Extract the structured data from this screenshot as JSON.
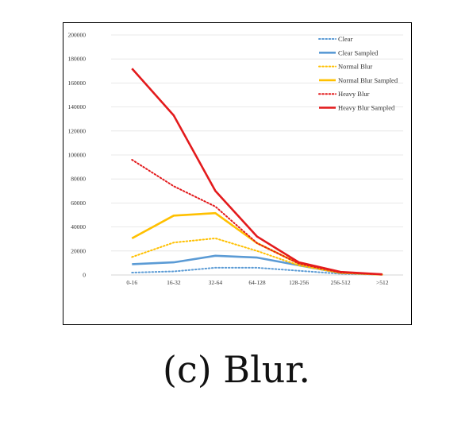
{
  "caption": "(c) Blur.",
  "chart_data": {
    "type": "line",
    "categories": [
      "0-16",
      "16-32",
      "32-64",
      "64-128",
      "128-256",
      "256-512",
      ">512"
    ],
    "ylim": [
      0,
      200000
    ],
    "yticks": [
      0,
      20000,
      40000,
      60000,
      80000,
      100000,
      120000,
      140000,
      160000,
      180000,
      200000
    ],
    "grid": true,
    "legend_position": "top-right",
    "series": [
      {
        "name": "Clear",
        "values": [
          2000,
          3000,
          6000,
          6000,
          3500,
          1000,
          300
        ],
        "color": "#5b9bd5",
        "dashed": true
      },
      {
        "name": "Clear Sampled",
        "values": [
          9000,
          10500,
          16000,
          14500,
          8000,
          1800,
          400
        ],
        "color": "#5b9bd5",
        "dashed": false
      },
      {
        "name": "Normal Blur",
        "values": [
          15000,
          27000,
          30500,
          20000,
          8000,
          1500,
          300
        ],
        "color": "#ffc000",
        "dashed": true
      },
      {
        "name": "Normal Blur Sampled",
        "values": [
          30500,
          49500,
          51500,
          26500,
          9500,
          2000,
          400
        ],
        "color": "#ffc000",
        "dashed": false
      },
      {
        "name": "Heavy Blur",
        "values": [
          96000,
          74000,
          57000,
          26500,
          9500,
          2000,
          400
        ],
        "color": "#e31a1c",
        "dashed": true
      },
      {
        "name": "Heavy Blur Sampled",
        "values": [
          172000,
          133000,
          70000,
          32000,
          10500,
          2500,
          500
        ],
        "color": "#e31a1c",
        "dashed": false
      }
    ]
  }
}
